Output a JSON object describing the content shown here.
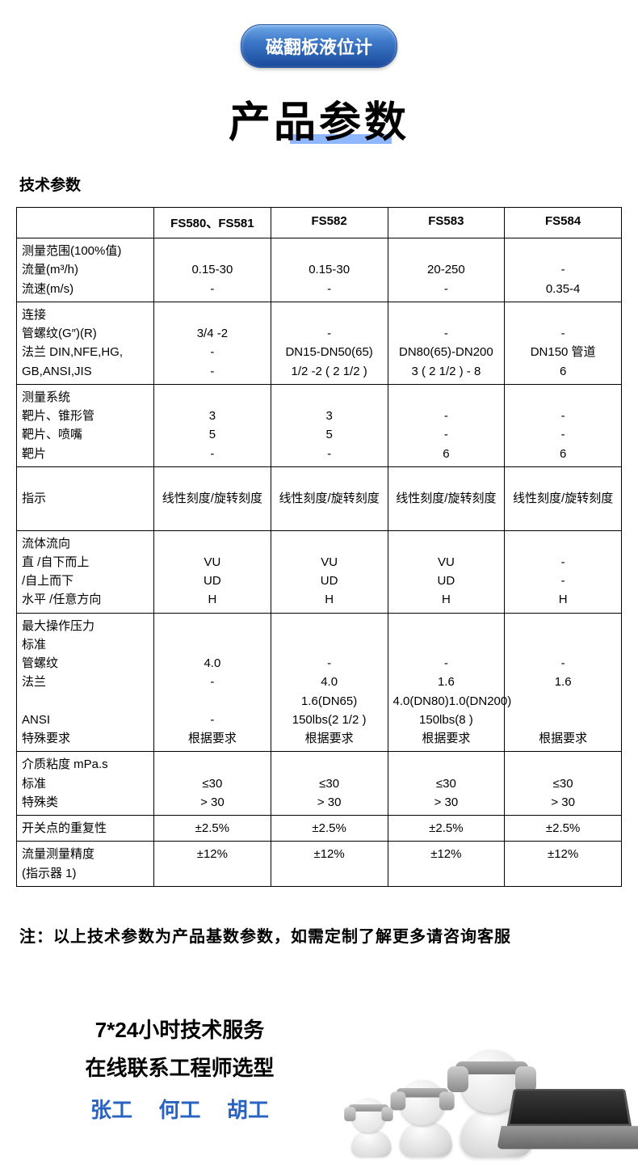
{
  "badge": "磁翻板液位计",
  "title": "产品参数",
  "section_label": "技术参数",
  "colors": {
    "badge_gradient_top": "#6fa8e8",
    "badge_gradient_bottom": "#1a4a9a",
    "underline": "#8fb7ff",
    "link_name": "#2a62c2",
    "border": "#000000"
  },
  "table": {
    "columns": [
      "FS580、FS581",
      "FS582",
      "FS583",
      "FS584"
    ],
    "groups": [
      {
        "labels": [
          "测量范围(100%值)",
          "流量(m³/h)",
          "流速(m/s)"
        ],
        "rows": [
          [
            "",
            "",
            "",
            ""
          ],
          [
            "0.15-30",
            "0.15-30",
            "20-250",
            "-"
          ],
          [
            "-",
            "-",
            "-",
            "0.35-4"
          ]
        ]
      },
      {
        "labels": [
          "连接",
          "管螺纹(G″)(R)",
          "法兰 DIN,NFE,HG,\nGB,ANSI,JIS"
        ],
        "rows": [
          [
            "",
            "",
            "",
            ""
          ],
          [
            "3/4   -2",
            "-",
            "-",
            "-"
          ],
          [
            "-\n-",
            "DN15-DN50(65)\n1/2   -2   ( 2 1/2   )",
            "DN80(65)-DN200\n3   ( 2 1/2   )  - 8",
            "DN150 管道\n6"
          ]
        ]
      },
      {
        "labels": [
          "测量系统",
          "靶片、锥形管",
          "靶片、喷嘴",
          "靶片"
        ],
        "rows": [
          [
            "",
            "",
            "",
            ""
          ],
          [
            "3",
            "3",
            "-",
            "-"
          ],
          [
            "5",
            "5",
            "-",
            "-"
          ],
          [
            "-",
            "-",
            "6",
            "6"
          ]
        ]
      },
      {
        "labels": [
          "指示"
        ],
        "rows": [
          [
            "线性刻度/旋转刻度",
            "线性刻度/旋转刻度",
            "线性刻度/旋转刻度",
            "线性刻度/旋转刻度"
          ]
        ],
        "pad": true
      },
      {
        "labels": [
          "流体流向",
          "   直   /自下而上",
          "/自上而下",
          "水平   /任意方向"
        ],
        "rows": [
          [
            "",
            "",
            "",
            ""
          ],
          [
            "VU",
            "VU",
            "VU",
            "-"
          ],
          [
            "UD",
            "UD",
            "UD",
            "-"
          ],
          [
            "H",
            "H",
            "H",
            "H"
          ]
        ]
      },
      {
        "labels": [
          "最大操作压力",
          "标准",
          "管螺纹",
          "法兰",
          "",
          "ANSI",
          "特殊要求"
        ],
        "rows": [
          [
            "",
            "",
            "",
            ""
          ],
          [
            "",
            "",
            "",
            ""
          ],
          [
            "4.0",
            "-",
            "-",
            "-"
          ],
          [
            "-",
            "4.0",
            "1.6",
            "1.6"
          ],
          [
            "",
            "1.6(DN65)",
            "4.0(DN80)1.0(DN200)",
            ""
          ],
          [
            "-",
            "150lbs(2 1/2 )",
            "150lbs(8 )",
            ""
          ],
          [
            "根据要求",
            "根据要求",
            "根据要求",
            "根据要求"
          ]
        ]
      },
      {
        "labels": [
          "介质粘度 mPa.s",
          "标准",
          "特殊类"
        ],
        "rows": [
          [
            "",
            "",
            "",
            ""
          ],
          [
            "≤30",
            "≤30",
            "≤30",
            "≤30"
          ],
          [
            "> 30",
            "> 30",
            "> 30",
            "> 30"
          ]
        ]
      },
      {
        "labels": [
          "开关点的重复性"
        ],
        "rows": [
          [
            "±2.5%",
            "±2.5%",
            "±2.5%",
            "±2.5%"
          ]
        ]
      },
      {
        "labels": [
          "流量测量精度\n(指示器 1)"
        ],
        "rows": [
          [
            "±12%",
            "±12%",
            "±12%",
            "±12%"
          ]
        ]
      }
    ]
  },
  "note": "注：以上技术参数为产品基数参数，如需定制了解更多请咨询客服",
  "service": {
    "line1": "7*24小时技术服务",
    "line2": "在线联系工程师选型",
    "names": [
      "张工",
      "何工",
      "胡工"
    ]
  }
}
